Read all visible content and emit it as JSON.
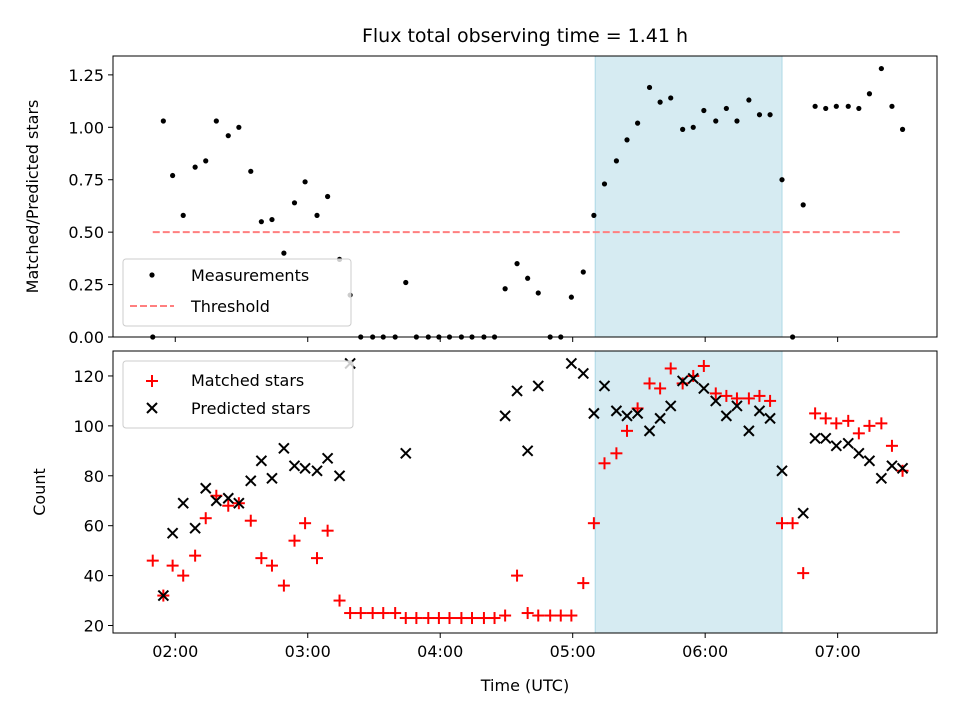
{
  "chart_data": [
    {
      "type": "scatter",
      "title": "Flux total observing time = 1.41 h",
      "xlabel": "",
      "ylabel": "Matched/Predicted stars",
      "x_unit": "hour UTC",
      "xlim": [
        1.53,
        7.75
      ],
      "ylim": [
        0,
        1.34
      ],
      "xticks": [
        2,
        3,
        4,
        5,
        6,
        7
      ],
      "xtick_labels": [],
      "yticks": [
        0,
        0.25,
        0.5,
        0.75,
        1.0,
        1.25
      ],
      "ytick_labels": [
        "0.00",
        "0.25",
        "0.50",
        "0.75",
        "1.00",
        "1.25"
      ],
      "shaded_span": [
        5.17,
        6.58
      ],
      "shade_color": "#add8e6",
      "legend_position": "lower left",
      "series": [
        {
          "name": "Measurements",
          "kind": "dots",
          "color": "#000000",
          "points": [
            [
              1.83,
              0.0
            ],
            [
              1.91,
              1.03
            ],
            [
              1.98,
              0.77
            ],
            [
              2.06,
              0.58
            ],
            [
              2.15,
              0.81
            ],
            [
              2.23,
              0.84
            ],
            [
              2.31,
              1.03
            ],
            [
              2.4,
              0.96
            ],
            [
              2.48,
              1.0
            ],
            [
              2.57,
              0.79
            ],
            [
              2.65,
              0.55
            ],
            [
              2.73,
              0.56
            ],
            [
              2.82,
              0.4
            ],
            [
              2.9,
              0.64
            ],
            [
              2.98,
              0.74
            ],
            [
              3.07,
              0.58
            ],
            [
              3.15,
              0.67
            ],
            [
              3.24,
              0.37
            ],
            [
              3.32,
              0.2
            ],
            [
              3.4,
              0.0
            ],
            [
              3.49,
              0.0
            ],
            [
              3.57,
              0.0
            ],
            [
              3.66,
              0.0
            ],
            [
              3.74,
              0.26
            ],
            [
              3.82,
              0.0
            ],
            [
              3.91,
              0.0
            ],
            [
              3.99,
              0.0
            ],
            [
              4.07,
              0.0
            ],
            [
              4.16,
              0.0
            ],
            [
              4.24,
              0.0
            ],
            [
              4.33,
              0.0
            ],
            [
              4.41,
              0.0
            ],
            [
              4.49,
              0.23
            ],
            [
              4.58,
              0.35
            ],
            [
              4.66,
              0.28
            ],
            [
              4.74,
              0.21
            ],
            [
              4.83,
              0.0
            ],
            [
              4.91,
              0.0
            ],
            [
              4.99,
              0.19
            ],
            [
              5.08,
              0.31
            ],
            [
              5.16,
              0.58
            ],
            [
              5.24,
              0.73
            ],
            [
              5.33,
              0.84
            ],
            [
              5.41,
              0.94
            ],
            [
              5.49,
              1.02
            ],
            [
              5.58,
              1.19
            ],
            [
              5.66,
              1.12
            ],
            [
              5.74,
              1.14
            ],
            [
              5.83,
              0.99
            ],
            [
              5.91,
              1.0
            ],
            [
              5.99,
              1.08
            ],
            [
              6.08,
              1.03
            ],
            [
              6.16,
              1.09
            ],
            [
              6.24,
              1.03
            ],
            [
              6.33,
              1.13
            ],
            [
              6.41,
              1.06
            ],
            [
              6.49,
              1.06
            ],
            [
              6.58,
              0.75
            ],
            [
              6.66,
              0.0
            ],
            [
              6.74,
              0.63
            ],
            [
              6.83,
              1.1
            ],
            [
              6.91,
              1.09
            ],
            [
              6.99,
              1.1
            ],
            [
              7.08,
              1.1
            ],
            [
              7.16,
              1.09
            ],
            [
              7.24,
              1.16
            ],
            [
              7.33,
              1.28
            ],
            [
              7.41,
              1.1
            ],
            [
              7.49,
              0.99
            ]
          ]
        },
        {
          "name": "Threshold",
          "kind": "dashed-line",
          "color": "#ff7f7f",
          "points": [
            [
              1.83,
              0.5
            ],
            [
              7.49,
              0.5
            ]
          ]
        }
      ]
    },
    {
      "type": "scatter",
      "title": "",
      "xlabel": "Time (UTC)",
      "ylabel": "Count",
      "x_unit": "hour UTC",
      "xlim": [
        1.53,
        7.75
      ],
      "ylim": [
        17,
        130
      ],
      "xticks": [
        2,
        3,
        4,
        5,
        6,
        7
      ],
      "xtick_labels": [
        "02:00",
        "03:00",
        "04:00",
        "05:00",
        "06:00",
        "07:00"
      ],
      "yticks": [
        20,
        40,
        60,
        80,
        100,
        120
      ],
      "ytick_labels": [
        "20",
        "40",
        "60",
        "80",
        "100",
        "120"
      ],
      "shaded_span": [
        5.17,
        6.58
      ],
      "shade_color": "#add8e6",
      "legend_position": "upper left",
      "series": [
        {
          "name": "Matched stars",
          "kind": "plus",
          "color": "#ff0000",
          "points": [
            [
              1.83,
              46
            ],
            [
              1.91,
              32
            ],
            [
              1.98,
              44
            ],
            [
              2.06,
              40
            ],
            [
              2.15,
              48
            ],
            [
              2.23,
              63
            ],
            [
              2.31,
              72
            ],
            [
              2.4,
              68
            ],
            [
              2.48,
              69
            ],
            [
              2.57,
              62
            ],
            [
              2.65,
              47
            ],
            [
              2.73,
              44
            ],
            [
              2.82,
              36
            ],
            [
              2.9,
              54
            ],
            [
              2.98,
              61
            ],
            [
              3.07,
              47
            ],
            [
              3.15,
              58
            ],
            [
              3.24,
              30
            ],
            [
              3.32,
              25
            ],
            [
              3.4,
              25
            ],
            [
              3.49,
              25
            ],
            [
              3.57,
              25
            ],
            [
              3.66,
              25
            ],
            [
              3.74,
              23
            ],
            [
              3.82,
              23
            ],
            [
              3.91,
              23
            ],
            [
              3.99,
              23
            ],
            [
              4.07,
              23
            ],
            [
              4.16,
              23
            ],
            [
              4.24,
              23
            ],
            [
              4.33,
              23
            ],
            [
              4.41,
              23
            ],
            [
              4.49,
              24
            ],
            [
              4.58,
              40
            ],
            [
              4.66,
              25
            ],
            [
              4.74,
              24
            ],
            [
              4.83,
              24
            ],
            [
              4.91,
              24
            ],
            [
              4.99,
              24
            ],
            [
              5.08,
              37
            ],
            [
              5.16,
              61
            ],
            [
              5.24,
              85
            ],
            [
              5.33,
              89
            ],
            [
              5.41,
              98
            ],
            [
              5.49,
              107
            ],
            [
              5.58,
              117
            ],
            [
              5.66,
              115
            ],
            [
              5.74,
              123
            ],
            [
              5.83,
              117
            ],
            [
              5.91,
              120
            ],
            [
              5.99,
              124
            ],
            [
              6.08,
              113
            ],
            [
              6.16,
              112
            ],
            [
              6.24,
              111
            ],
            [
              6.33,
              111
            ],
            [
              6.41,
              112
            ],
            [
              6.49,
              110
            ],
            [
              6.58,
              61
            ],
            [
              6.66,
              61
            ],
            [
              6.74,
              41
            ],
            [
              6.83,
              105
            ],
            [
              6.91,
              103
            ],
            [
              6.99,
              101
            ],
            [
              7.08,
              102
            ],
            [
              7.16,
              97
            ],
            [
              7.24,
              100
            ],
            [
              7.33,
              101
            ],
            [
              7.41,
              92
            ],
            [
              7.49,
              82
            ]
          ]
        },
        {
          "name": "Predicted stars",
          "kind": "x",
          "color": "#000000",
          "points": [
            [
              1.91,
              32
            ],
            [
              1.98,
              57
            ],
            [
              2.06,
              69
            ],
            [
              2.15,
              59
            ],
            [
              2.23,
              75
            ],
            [
              2.31,
              70
            ],
            [
              2.4,
              71
            ],
            [
              2.48,
              69
            ],
            [
              2.57,
              78
            ],
            [
              2.65,
              86
            ],
            [
              2.73,
              79
            ],
            [
              2.82,
              91
            ],
            [
              2.9,
              84
            ],
            [
              2.98,
              83
            ],
            [
              3.07,
              82
            ],
            [
              3.15,
              87
            ],
            [
              3.24,
              80
            ],
            [
              3.32,
              125
            ],
            [
              3.74,
              89
            ],
            [
              4.49,
              104
            ],
            [
              4.58,
              114
            ],
            [
              4.66,
              90
            ],
            [
              4.74,
              116
            ],
            [
              4.99,
              125
            ],
            [
              5.08,
              121
            ],
            [
              5.16,
              105
            ],
            [
              5.24,
              116
            ],
            [
              5.33,
              106
            ],
            [
              5.41,
              104
            ],
            [
              5.49,
              105
            ],
            [
              5.58,
              98
            ],
            [
              5.66,
              103
            ],
            [
              5.74,
              108
            ],
            [
              5.83,
              118
            ],
            [
              5.91,
              119
            ],
            [
              5.99,
              115
            ],
            [
              6.08,
              110
            ],
            [
              6.16,
              104
            ],
            [
              6.24,
              108
            ],
            [
              6.33,
              98
            ],
            [
              6.41,
              106
            ],
            [
              6.49,
              103
            ],
            [
              6.58,
              82
            ],
            [
              6.74,
              65
            ],
            [
              6.83,
              95
            ],
            [
              6.91,
              95
            ],
            [
              6.99,
              92
            ],
            [
              7.08,
              93
            ],
            [
              7.16,
              89
            ],
            [
              7.24,
              86
            ],
            [
              7.33,
              79
            ],
            [
              7.41,
              84
            ],
            [
              7.49,
              83
            ]
          ]
        }
      ]
    }
  ]
}
